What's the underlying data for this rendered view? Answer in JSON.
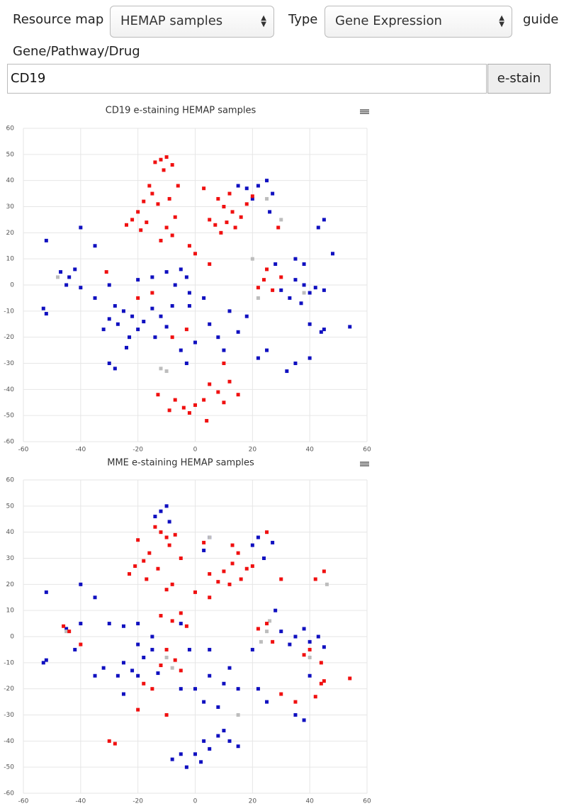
{
  "controls": {
    "resource_map_label": "Resource map",
    "resource_map_value": "HEMAP samples",
    "type_label": "Type",
    "type_value": "Gene Expression",
    "guide": "guide",
    "query_label": "Gene/Pathway/Drug",
    "query_value": "CD19",
    "button": "e-stain"
  },
  "chart_data": [
    {
      "type": "scatter",
      "title": "CD19 e-staining HEMAP samples",
      "xlim": [
        -60,
        60
      ],
      "ylim": [
        -60,
        60
      ],
      "xticks": [
        -60,
        -40,
        -20,
        0,
        20,
        40,
        60
      ],
      "yticks": [
        -60,
        -50,
        -40,
        -30,
        -20,
        -10,
        0,
        10,
        20,
        30,
        40,
        50,
        60
      ],
      "grid": true,
      "series": [
        {
          "color": "#1010c0",
          "x": [
            -47,
            -44,
            -42,
            -45,
            -40,
            -53,
            -52,
            -52,
            -40,
            -35,
            -30,
            -27,
            -25,
            -32,
            -22,
            -20,
            -18,
            -15,
            -12,
            -10,
            -8,
            -14,
            -23,
            -28,
            -24,
            -20,
            -15,
            -10,
            -5,
            -3,
            -7,
            -2,
            -30,
            -35,
            5,
            8,
            10,
            0,
            -5,
            -3,
            15,
            12,
            18,
            3,
            -2,
            22,
            25,
            18,
            20,
            27,
            15,
            26,
            35,
            38,
            40,
            42,
            45,
            33,
            37,
            30,
            28,
            35,
            38,
            45,
            43,
            48,
            45,
            44,
            54,
            35,
            40,
            32,
            25,
            22,
            40,
            -28,
            -30
          ],
          "values": [
            5,
            3,
            6,
            0,
            -1,
            -9,
            -11,
            17,
            22,
            15,
            -13,
            -15,
            -10,
            -17,
            -12,
            -17,
            -14,
            -9,
            -12,
            -16,
            -8,
            -20,
            -20,
            -8,
            -24,
            2,
            3,
            5,
            6,
            3,
            0,
            -3,
            0,
            -5,
            -15,
            -20,
            -25,
            -22,
            -25,
            -30,
            -18,
            -10,
            -12,
            -5,
            -8,
            38,
            40,
            37,
            33,
            35,
            38,
            28,
            2,
            0,
            -3,
            -1,
            -2,
            -5,
            -7,
            -2,
            8,
            10,
            8,
            25,
            22,
            12,
            -17,
            -18,
            -16,
            -30,
            -28,
            -33,
            -25,
            -28,
            -15,
            -32,
            -30
          ]
        },
        {
          "color": "#bdbdbd",
          "x": [
            -10,
            -12,
            22,
            38,
            30,
            20,
            25,
            -48
          ],
          "values": [
            -33,
            -32,
            -5,
            -3,
            25,
            10,
            33,
            3
          ]
        },
        {
          "color": "#f01010",
          "x": [
            -12,
            -10,
            -14,
            -8,
            -11,
            -15,
            -18,
            -13,
            -20,
            -22,
            -17,
            -19,
            -24,
            -10,
            -8,
            -12,
            -7,
            -9,
            -6,
            -16,
            3,
            8,
            10,
            13,
            16,
            11,
            7,
            14,
            9,
            18,
            20,
            5,
            12,
            29,
            25,
            24,
            27,
            22,
            30,
            -31,
            -2,
            0,
            5,
            -20,
            -15,
            5,
            8,
            12,
            15,
            10,
            3,
            -7,
            -4,
            -9,
            -2,
            0,
            -13,
            4,
            10,
            -3,
            -8
          ],
          "values": [
            48,
            49,
            47,
            46,
            44,
            35,
            32,
            31,
            28,
            25,
            24,
            21,
            23,
            22,
            19,
            17,
            26,
            33,
            38,
            38,
            37,
            33,
            30,
            28,
            26,
            24,
            23,
            22,
            20,
            31,
            34,
            25,
            35,
            22,
            6,
            2,
            -2,
            -1,
            3,
            5,
            15,
            12,
            8,
            -5,
            -3,
            -38,
            -41,
            -37,
            -42,
            -45,
            -44,
            -44,
            -47,
            -48,
            -49,
            -46,
            -42,
            -52,
            -30,
            -17,
            -20
          ]
        }
      ]
    },
    {
      "type": "scatter",
      "title": "MME e-staining HEMAP samples",
      "xlim": [
        -60,
        60
      ],
      "ylim": [
        -60,
        60
      ],
      "xticks": [
        -60,
        -40,
        -20,
        0,
        20,
        40,
        60
      ],
      "yticks": [
        -60,
        -50,
        -40,
        -30,
        -20,
        -10,
        0,
        10,
        20,
        30,
        40,
        50,
        60
      ],
      "grid": true,
      "series": [
        {
          "color": "#1010c0",
          "x": [
            -12,
            -10,
            -14,
            -9,
            22,
            20,
            24,
            27,
            5,
            3,
            -52,
            -53,
            -52,
            -40,
            -35,
            -30,
            -25,
            -35,
            -32,
            -27,
            -25,
            -22,
            -20,
            -18,
            -15,
            -13,
            -25,
            -20,
            -15,
            -20,
            -5,
            -2,
            -5,
            0,
            5,
            10,
            15,
            12,
            3,
            8,
            0,
            3,
            5,
            8,
            12,
            15,
            10,
            -5,
            -8,
            -3,
            2,
            35,
            38,
            40,
            43,
            45,
            33,
            30,
            28,
            35,
            38,
            25,
            22,
            40,
            -40,
            -42,
            -45,
            5,
            20
          ],
          "values": [
            48,
            50,
            46,
            44,
            38,
            35,
            30,
            36,
            38,
            33,
            -9,
            -10,
            17,
            20,
            15,
            5,
            4,
            -15,
            -12,
            -15,
            -10,
            -13,
            -15,
            -8,
            -5,
            -14,
            -22,
            -3,
            0,
            5,
            5,
            -5,
            -20,
            -20,
            -15,
            -18,
            -20,
            -12,
            -25,
            -27,
            -45,
            -40,
            -43,
            -38,
            -40,
            -42,
            -36,
            -45,
            -47,
            -50,
            -48,
            0,
            3,
            -2,
            0,
            -4,
            -3,
            2,
            10,
            -30,
            -32,
            -25,
            -20,
            -15,
            5,
            -5,
            3,
            -5,
            -5
          ]
        },
        {
          "color": "#bdbdbd",
          "x": [
            25,
            23,
            26,
            -10,
            -8,
            5,
            -45,
            46,
            40,
            15
          ],
          "values": [
            2,
            -2,
            6,
            -8,
            -12,
            38,
            2,
            20,
            -8,
            -30
          ]
        },
        {
          "color": "#f01010",
          "x": [
            -12,
            -10,
            -14,
            -7,
            -9,
            -16,
            -18,
            -21,
            -23,
            -17,
            -13,
            -10,
            -8,
            -20,
            -5,
            10,
            13,
            15,
            8,
            16,
            12,
            5,
            18,
            13,
            3,
            25,
            20,
            30,
            45,
            42,
            -46,
            -44,
            -40,
            -12,
            -8,
            -5,
            -3,
            -10,
            -7,
            -12,
            -5,
            -15,
            -18,
            25,
            27,
            22,
            40,
            38,
            44,
            45,
            44,
            54,
            42,
            30,
            35,
            -30,
            -28,
            -20,
            -10,
            0,
            5
          ],
          "values": [
            40,
            38,
            42,
            39,
            35,
            32,
            29,
            27,
            24,
            22,
            26,
            18,
            20,
            37,
            30,
            25,
            28,
            32,
            21,
            22,
            20,
            24,
            26,
            35,
            36,
            40,
            27,
            22,
            25,
            22,
            4,
            2,
            -3,
            8,
            6,
            9,
            4,
            -5,
            -9,
            -11,
            -13,
            -20,
            -18,
            5,
            -2,
            3,
            -5,
            -7,
            -10,
            -17,
            -18,
            -16,
            -23,
            -22,
            -25,
            -40,
            -41,
            -28,
            -30,
            17,
            15
          ]
        }
      ]
    }
  ]
}
